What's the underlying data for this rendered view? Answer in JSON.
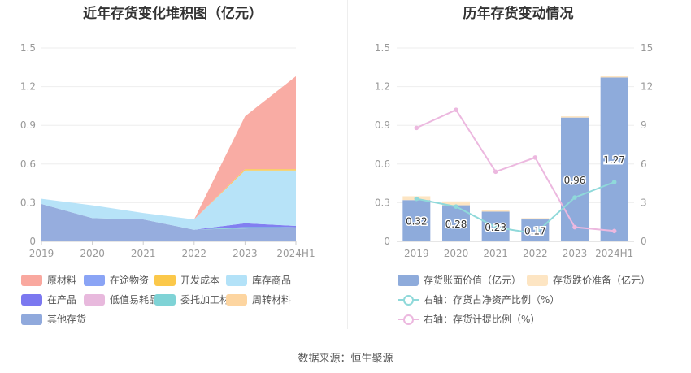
{
  "source": "数据来源：恒生聚源",
  "chart_data": [
    {
      "type": "area",
      "title": "近年存货变化堆积图（亿元）",
      "categories": [
        "2019",
        "2020",
        "2021",
        "2022",
        "2023",
        "2024H1"
      ],
      "ylim": [
        0,
        1.5
      ],
      "yticks": [
        "0",
        "0.3",
        "0.6",
        "0.9",
        "1.2",
        "1.5"
      ],
      "stack_order": [
        "其他存货",
        "委托加工材料",
        "在产品",
        "库存商品",
        "开发成本",
        "周转材料",
        "原材料"
      ],
      "series": [
        {
          "name": "原材料",
          "color": "#f9a89f",
          "values": [
            0,
            0,
            0,
            0,
            0.41,
            0.72
          ]
        },
        {
          "name": "在途物资",
          "color": "#8aa4f5",
          "values": [
            0,
            0,
            0,
            0,
            0,
            0
          ]
        },
        {
          "name": "开发成本",
          "color": "#fbc84a",
          "values": [
            0,
            0,
            0,
            0,
            0.01,
            0.01
          ]
        },
        {
          "name": "库存商品",
          "color": "#b3e2f8",
          "values": [
            0.04,
            0.1,
            0.05,
            0.08,
            0.41,
            0.43
          ]
        },
        {
          "name": "在产品",
          "color": "#7b78f0",
          "values": [
            0,
            0,
            0,
            0,
            0.03,
            0.01
          ]
        },
        {
          "name": "低值易耗品",
          "color": "#e8b9dd",
          "values": [
            0,
            0,
            0,
            0,
            0,
            0
          ]
        },
        {
          "name": "委托加工材料",
          "color": "#7fd3d6",
          "values": [
            0,
            0,
            0,
            0,
            0.01,
            0
          ]
        },
        {
          "name": "周转材料",
          "color": "#fdd5a0",
          "values": [
            0,
            0,
            0,
            0,
            0,
            0
          ]
        },
        {
          "name": "其他存货",
          "color": "#90a9dc",
          "values": [
            0.29,
            0.18,
            0.17,
            0.09,
            0.1,
            0.11
          ]
        }
      ]
    },
    {
      "type": "bar",
      "title": "历年存货变动情况",
      "categories": [
        "2019",
        "2020",
        "2021",
        "2022",
        "2023",
        "2024H1"
      ],
      "ylim": [
        0,
        1.5
      ],
      "yticks": [
        "0",
        "0.3",
        "0.6",
        "0.9",
        "1.2",
        "1.5"
      ],
      "y2lim": [
        0,
        15
      ],
      "y2ticks": [
        "0",
        "3",
        "6",
        "9",
        "12",
        "15"
      ],
      "series": [
        {
          "name": "存货账面价值（亿元）",
          "color": "#8eabdb",
          "values": [
            0.32,
            0.28,
            0.23,
            0.17,
            0.96,
            1.27
          ],
          "labels": [
            "0.32",
            "0.28",
            "0.23",
            "0.17",
            "0.96",
            "1.27"
          ]
        },
        {
          "name": "存货跌价准备（亿元）",
          "color": "#fde5c3",
          "values": [
            0.03,
            0.03,
            0.01,
            0.01,
            0.01,
            0.01
          ]
        },
        {
          "name": "右轴：存货占净资产比例（%）",
          "color": "#8fd9da",
          "axis": "right",
          "values": [
            3.3,
            2.7,
            1.1,
            0.6,
            3.4,
            4.6
          ]
        },
        {
          "name": "右轴：存货计提比例（%）",
          "color": "#ecb8df",
          "axis": "right",
          "values": [
            8.8,
            10.2,
            5.4,
            6.5,
            1.1,
            0.8
          ]
        }
      ]
    }
  ]
}
